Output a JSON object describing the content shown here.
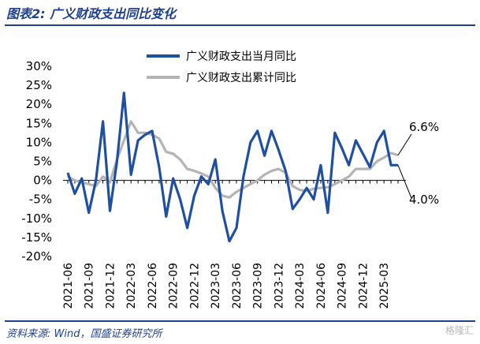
{
  "header": {
    "title": "图表2:  广义财政支出同比变化"
  },
  "footer": {
    "source": "资料来源:  Wind，国盛证券研究所",
    "watermark": "格隆汇"
  },
  "colors": {
    "brand": "#1f3f8f",
    "monthly": "#1f4fa0",
    "cumulative": "#b4b4b4"
  },
  "chart_data": {
    "type": "line",
    "x": [
      "2021-06",
      "2021-07",
      "2021-08",
      "2021-09",
      "2021-10",
      "2021-11",
      "2021-12",
      "2022-01",
      "2022-02",
      "2022-03",
      "2022-04",
      "2022-05",
      "2022-06",
      "2022-07",
      "2022-08",
      "2022-09",
      "2022-10",
      "2022-11",
      "2022-12",
      "2023-01",
      "2023-02",
      "2023-03",
      "2023-04",
      "2023-05",
      "2023-06",
      "2023-07",
      "2023-08",
      "2023-09",
      "2023-10",
      "2023-11",
      "2023-12",
      "2024-01",
      "2024-02",
      "2024-03",
      "2024-04",
      "2024-05",
      "2024-06",
      "2024-07",
      "2024-08",
      "2024-09",
      "2024-10",
      "2024-11",
      "2024-12",
      "2025-01",
      "2025-02",
      "2025-03",
      "2025-04",
      "2025-05"
    ],
    "x_ticks": [
      "2021-06",
      "2021-09",
      "2021-12",
      "2022-03",
      "2022-06",
      "2022-09",
      "2022-12",
      "2023-03",
      "2023-06",
      "2023-09",
      "2023-12",
      "2024-03",
      "2024-06",
      "2024-09",
      "2024-12",
      "2025-03"
    ],
    "series": [
      {
        "name": "广义财政支出当月同比",
        "values": [
          2,
          -3.5,
          0.5,
          -8.5,
          0,
          15.5,
          -8,
          5,
          23,
          1.5,
          10.5,
          12,
          13,
          3.5,
          -9.5,
          0.5,
          -5,
          -12.5,
          -4,
          1,
          -1,
          5.5,
          -8,
          -16,
          -12.5,
          1,
          10,
          13,
          6.5,
          13,
          8,
          2.5,
          -7.5,
          -5,
          -2,
          -5,
          4,
          -8.5,
          12.5,
          8.5,
          4,
          10.5,
          7,
          3.5,
          10,
          13,
          4.0,
          4.0
        ]
      },
      {
        "name": "广义财政支出累计同比",
        "values": [
          1,
          0,
          -0.5,
          -1,
          -1.5,
          1,
          -0.5,
          5.5,
          10.5,
          15.5,
          12.5,
          12.5,
          12,
          11,
          7.5,
          7,
          5.5,
          3,
          2.5,
          1.8,
          1,
          -2,
          -4,
          -4.5,
          -3,
          -2,
          -1,
          0,
          1.5,
          2.5,
          3,
          2,
          -1.5,
          -2.5,
          -2.8,
          -2.2,
          -2,
          -1.8,
          -1,
          0,
          1,
          3,
          3,
          3,
          5,
          6,
          7.2,
          6.6
        ]
      }
    ],
    "annotations": [
      {
        "text": "6.6%",
        "series": 1
      },
      {
        "text": "4.0%",
        "series": 0
      }
    ],
    "ylim": [
      -20,
      30
    ],
    "y_ticks": [
      -20,
      -15,
      -10,
      -5,
      0,
      5,
      10,
      15,
      20,
      25,
      30
    ],
    "y_tick_format": "%",
    "legend": "top-center",
    "grid": false
  }
}
